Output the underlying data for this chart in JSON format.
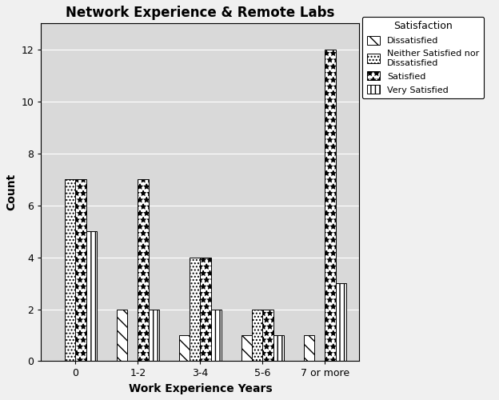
{
  "title": "Network Experience & Remote Labs",
  "xlabel": "Work Experience Years",
  "ylabel": "Count",
  "categories": [
    "0",
    "1-2",
    "3-4",
    "5-6",
    "7 or more"
  ],
  "series_names": [
    "Dissatisfied",
    "Neither Satisfied nor\nDissatisfied",
    "Satisfied",
    "Very Satisfied"
  ],
  "series_values": [
    [
      0,
      2,
      1,
      1,
      1
    ],
    [
      7,
      0,
      4,
      2,
      0
    ],
    [
      7,
      7,
      4,
      2,
      12
    ],
    [
      5,
      2,
      2,
      1,
      3
    ]
  ],
  "ylim": [
    0,
    13
  ],
  "yticks": [
    0,
    2,
    4,
    6,
    8,
    10,
    12
  ],
  "legend_title": "Satisfaction",
  "legend_labels": [
    "Dissatisfied",
    "Neither Satisfied nor\nDissatisfied",
    "Satisfied",
    "Very Satisfied"
  ],
  "plot_bg_color": "#d9d9d9",
  "fig_bg_color": "#f0f0f0",
  "bar_width": 0.17,
  "hatches": [
    "\\\\",
    "....",
    "**",
    "|||"
  ],
  "bar_edge_color": "black",
  "bar_face_color": "white",
  "title_fontsize": 12,
  "axis_label_fontsize": 10,
  "tick_fontsize": 9,
  "legend_fontsize": 8,
  "legend_title_fontsize": 9
}
